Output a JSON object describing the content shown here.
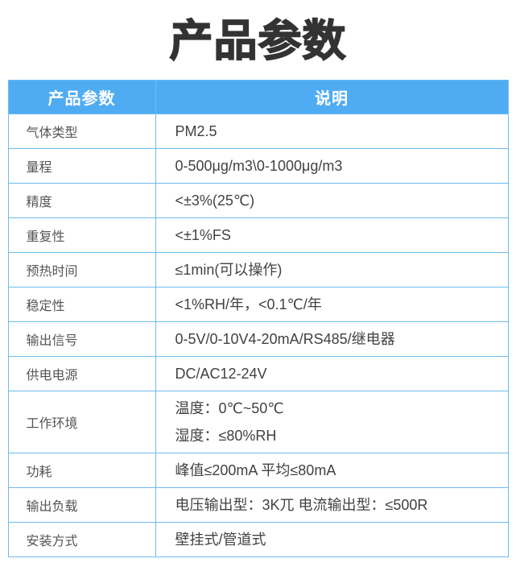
{
  "page": {
    "title": "产品参数"
  },
  "colors": {
    "header_bg": "#4FACF2",
    "header_text": "#FFFFFF",
    "border": "#70BBEF",
    "title_text": "#333333",
    "label_text": "#555555",
    "value_text": "#424242"
  },
  "table": {
    "headers": {
      "parameter": "产品参数",
      "description": "说明"
    },
    "rows": [
      {
        "label": "气体类型",
        "value": "PM2.5"
      },
      {
        "label": "量程",
        "value": "0-500μg/m3\\0-1000μg/m3"
      },
      {
        "label": "精度",
        "value": "<±3%(25℃)"
      },
      {
        "label": "重复性",
        "value": "<±1%FS"
      },
      {
        "label": "预热时间",
        "value": "≤1min(可以操作)"
      },
      {
        "label": "稳定性",
        "value": "<1%RH/年，<0.1℃/年"
      },
      {
        "label": "输出信号",
        "value": "0-5V/0-10V4-20mA/RS485/继电器"
      },
      {
        "label": "供电电源",
        "value": "DC/AC12-24V"
      },
      {
        "label": "工作环境",
        "value": "温度：0℃~50℃\n湿度：≤80%RH"
      },
      {
        "label": "功耗",
        "value": "峰值≤200mA 平均≤80mA"
      },
      {
        "label": "输出负载",
        "value": "电压输出型：3K兀 电流输出型：≤500R"
      },
      {
        "label": "安装方式",
        "value": "壁挂式/管道式"
      }
    ]
  }
}
